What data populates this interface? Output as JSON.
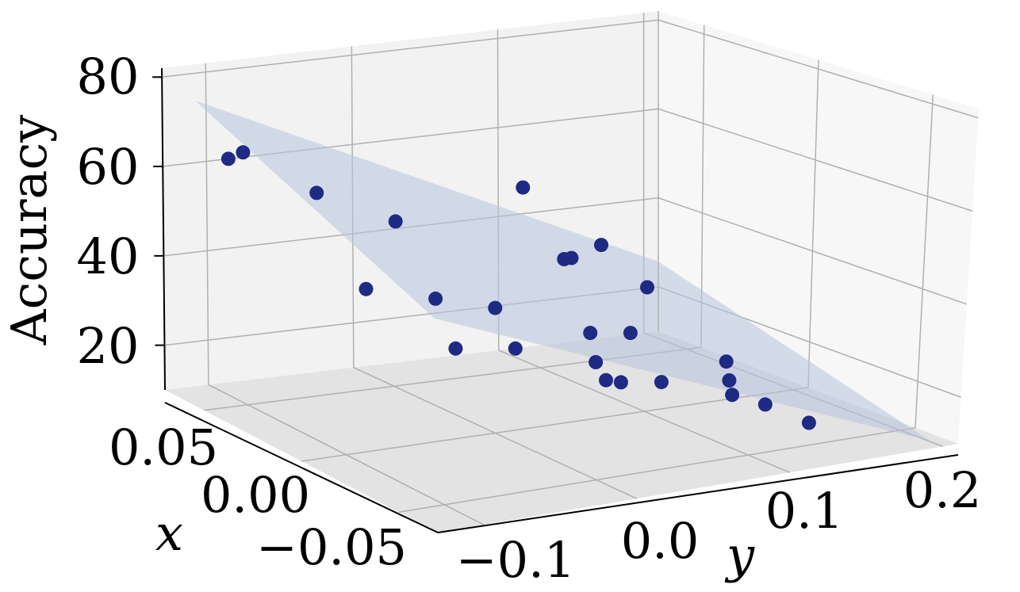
{
  "chart_data": {
    "type": "scatter",
    "projection": "3d",
    "xlabel": "x",
    "ylabel": "y",
    "zlabel": "Accuracy",
    "x_ticks": [
      "0.05",
      "0.00",
      "−0.05"
    ],
    "y_ticks": [
      "−0.1",
      "0.0",
      "0.1",
      "0.2"
    ],
    "z_ticks": [
      "20",
      "40",
      "60",
      "80"
    ],
    "xlim": [
      -0.07,
      0.07
    ],
    "ylim": [
      -0.13,
      0.21
    ],
    "zlim": [
      10,
      82
    ],
    "grid": true,
    "point_color": "#1f2a84",
    "plane_color": "#b8c4dc",
    "fitted_plane": {
      "corners_accuracy_at_floor_far_left": 76,
      "corners_accuracy_at_floor_near_right": 10
    },
    "points": [
      {
        "x": 0.045,
        "y": -0.12,
        "z": 67
      },
      {
        "x": 0.045,
        "y": -0.11,
        "z": 68
      },
      {
        "x": 0.03,
        "y": -0.08,
        "z": 61
      },
      {
        "x": 0.005,
        "y": -0.08,
        "z": 45
      },
      {
        "x": 0.02,
        "y": -0.04,
        "z": 55
      },
      {
        "x": 0.0,
        "y": -0.04,
        "z": 42
      },
      {
        "x": -0.01,
        "y": -0.04,
        "z": 33
      },
      {
        "x": 0.0,
        "y": 0.0,
        "z": 38
      },
      {
        "x": -0.01,
        "y": 0.0,
        "z": 31
      },
      {
        "x": 0.03,
        "y": 0.06,
        "z": 56
      },
      {
        "x": 0.01,
        "y": 0.06,
        "z": 44
      },
      {
        "x": 0.01,
        "y": 0.065,
        "z": 44
      },
      {
        "x": 0.01,
        "y": 0.085,
        "z": 46
      },
      {
        "x": -0.005,
        "y": 0.095,
        "z": 39
      },
      {
        "x": -0.01,
        "y": 0.05,
        "z": 32
      },
      {
        "x": -0.015,
        "y": 0.07,
        "z": 32
      },
      {
        "x": -0.02,
        "y": 0.04,
        "z": 28
      },
      {
        "x": -0.025,
        "y": 0.04,
        "z": 25
      },
      {
        "x": -0.025,
        "y": 0.05,
        "z": 24
      },
      {
        "x": -0.03,
        "y": 0.07,
        "z": 24
      },
      {
        "x": -0.025,
        "y": 0.12,
        "z": 25
      },
      {
        "x": -0.03,
        "y": 0.115,
        "z": 22
      },
      {
        "x": -0.035,
        "y": 0.11,
        "z": 20
      },
      {
        "x": -0.04,
        "y": 0.125,
        "z": 18
      },
      {
        "x": -0.05,
        "y": 0.14,
        "z": 15
      }
    ]
  }
}
